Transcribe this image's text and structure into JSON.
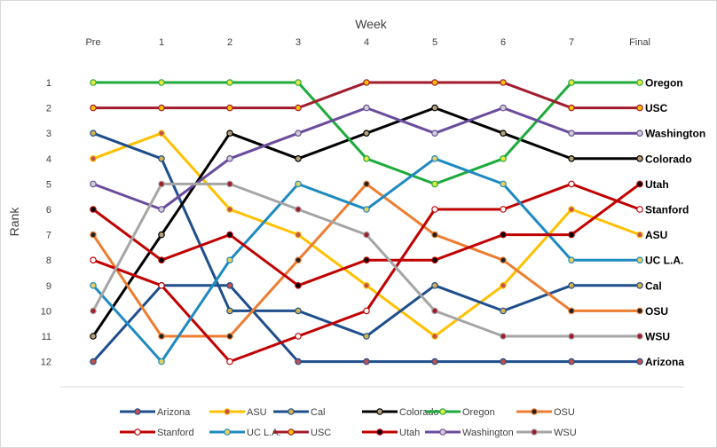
{
  "chart_data": {
    "type": "line",
    "title": "",
    "xlabel": "Week",
    "ylabel": "Rank",
    "x": [
      "Pre",
      "1",
      "2",
      "3",
      "4",
      "5",
      "6",
      "7",
      "Final"
    ],
    "ylim": [
      1,
      12
    ],
    "y_ticks": [
      "1",
      "2",
      "3",
      "4",
      "5",
      "6",
      "7",
      "8",
      "9",
      "10",
      "11",
      "12"
    ],
    "y_inverted": true,
    "grid": false,
    "legend_position": "bottom",
    "series": [
      {
        "name": "Arizona",
        "color": "#1f4e8c",
        "marker_fill": "#c0504d",
        "values": [
          12,
          9,
          9,
          12,
          12,
          12,
          12,
          12,
          12
        ]
      },
      {
        "name": "ASU",
        "color": "#ffc000",
        "marker_fill": "#c0504d",
        "values": [
          4,
          3,
          6,
          7,
          9,
          11,
          9,
          6,
          7
        ]
      },
      {
        "name": "Cal",
        "color": "#1f4e8c",
        "marker_fill": "#d4b44c",
        "values": [
          3,
          4,
          10,
          10,
          11,
          9,
          10,
          9,
          9
        ]
      },
      {
        "name": "Colorado",
        "color": "#000000",
        "marker_fill": "#b3a27a",
        "values": [
          11,
          7,
          3,
          4,
          3,
          2,
          3,
          4,
          4
        ]
      },
      {
        "name": "Oregon",
        "color": "#1eaa3c",
        "marker_fill": "#e8e840",
        "values": [
          1,
          1,
          1,
          1,
          4,
          5,
          4,
          1,
          1
        ]
      },
      {
        "name": "OSU",
        "color": "#ed7d31",
        "marker_fill": "#222222",
        "values": [
          7,
          11,
          11,
          8,
          5,
          7,
          8,
          10,
          10
        ]
      },
      {
        "name": "Stanford",
        "color": "#c00000",
        "marker_fill": "#ffffff",
        "values": [
          8,
          9,
          12,
          11,
          10,
          6,
          6,
          5,
          6
        ]
      },
      {
        "name": "UC L.A.",
        "color": "#1f8ac0",
        "marker_fill": "#e8d060",
        "values": [
          9,
          12,
          8,
          5,
          6,
          4,
          5,
          8,
          8
        ]
      },
      {
        "name": "USC",
        "color": "#a01c2c",
        "marker_fill": "#ffc000",
        "values": [
          2,
          2,
          2,
          2,
          1,
          1,
          1,
          2,
          2
        ]
      },
      {
        "name": "Utah",
        "color": "#c00000",
        "marker_fill": "#000000",
        "values": [
          6,
          8,
          7,
          9,
          8,
          8,
          7,
          7,
          5
        ]
      },
      {
        "name": "Washington",
        "color": "#6a4c9c",
        "marker_fill": "#d0d0d0",
        "values": [
          5,
          6,
          4,
          3,
          2,
          3,
          2,
          3,
          3
        ]
      },
      {
        "name": "WSU",
        "color": "#a5a5a5",
        "marker_fill": "#a01c2c",
        "values": [
          10,
          5,
          5,
          6,
          7,
          10,
          11,
          11,
          11
        ]
      }
    ],
    "end_labels": [
      {
        "rank": 1,
        "label": "Oregon"
      },
      {
        "rank": 2,
        "label": "USC"
      },
      {
        "rank": 3,
        "label": "Washington"
      },
      {
        "rank": 4,
        "label": "Colorado"
      },
      {
        "rank": 5,
        "label": "Utah"
      },
      {
        "rank": 6,
        "label": "Stanford"
      },
      {
        "rank": 7,
        "label": "ASU"
      },
      {
        "rank": 8,
        "label": "UC L.A."
      },
      {
        "rank": 9,
        "label": "Cal"
      },
      {
        "rank": 10,
        "label": "OSU"
      },
      {
        "rank": 11,
        "label": "WSU"
      },
      {
        "rank": 12,
        "label": "Arizona"
      }
    ]
  }
}
